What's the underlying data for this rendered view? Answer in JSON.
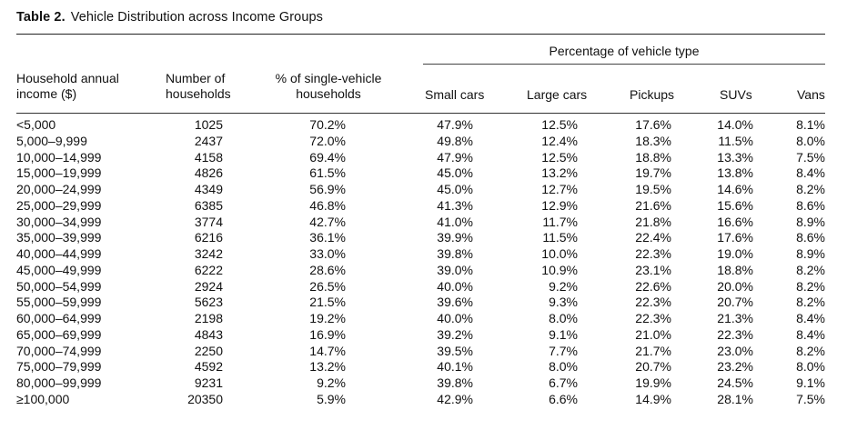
{
  "table": {
    "caption_label": "Table 2.",
    "caption_title": "Vehicle Distribution across Income Groups",
    "group_header": "Percentage of vehicle type",
    "headers": {
      "income": [
        "Household annual",
        "income ($)"
      ],
      "households": [
        "Number of",
        "households"
      ],
      "single": [
        "% of single-vehicle",
        "households"
      ],
      "small": "Small cars",
      "large": "Large cars",
      "pickups": "Pickups",
      "suvs": "SUVs",
      "vans": "Vans"
    },
    "rows": [
      [
        "<5,000",
        "1025",
        "70.2%",
        "47.9%",
        "12.5%",
        "17.6%",
        "14.0%",
        "8.1%"
      ],
      [
        "5,000–9,999",
        "2437",
        "72.0%",
        "49.8%",
        "12.4%",
        "18.3%",
        "11.5%",
        "8.0%"
      ],
      [
        "10,000–14,999",
        "4158",
        "69.4%",
        "47.9%",
        "12.5%",
        "18.8%",
        "13.3%",
        "7.5%"
      ],
      [
        "15,000–19,999",
        "4826",
        "61.5%",
        "45.0%",
        "13.2%",
        "19.7%",
        "13.8%",
        "8.4%"
      ],
      [
        "20,000–24,999",
        "4349",
        "56.9%",
        "45.0%",
        "12.7%",
        "19.5%",
        "14.6%",
        "8.2%"
      ],
      [
        "25,000–29,999",
        "6385",
        "46.8%",
        "41.3%",
        "12.9%",
        "21.6%",
        "15.6%",
        "8.6%"
      ],
      [
        "30,000–34,999",
        "3774",
        "42.7%",
        "41.0%",
        "11.7%",
        "21.8%",
        "16.6%",
        "8.9%"
      ],
      [
        "35,000–39,999",
        "6216",
        "36.1%",
        "39.9%",
        "11.5%",
        "22.4%",
        "17.6%",
        "8.6%"
      ],
      [
        "40,000–44,999",
        "3242",
        "33.0%",
        "39.8%",
        "10.0%",
        "22.3%",
        "19.0%",
        "8.9%"
      ],
      [
        "45,000–49,999",
        "6222",
        "28.6%",
        "39.0%",
        "10.9%",
        "23.1%",
        "18.8%",
        "8.2%"
      ],
      [
        "50,000–54,999",
        "2924",
        "26.5%",
        "40.0%",
        "9.2%",
        "22.6%",
        "20.0%",
        "8.2%"
      ],
      [
        "55,000–59,999",
        "5623",
        "21.5%",
        "39.6%",
        "9.3%",
        "22.3%",
        "20.7%",
        "8.2%"
      ],
      [
        "60,000–64,999",
        "2198",
        "19.2%",
        "40.0%",
        "8.0%",
        "22.3%",
        "21.3%",
        "8.4%"
      ],
      [
        "65,000–69,999",
        "4843",
        "16.9%",
        "39.2%",
        "9.1%",
        "21.0%",
        "22.3%",
        "8.4%"
      ],
      [
        "70,000–74,999",
        "2250",
        "14.7%",
        "39.5%",
        "7.7%",
        "21.7%",
        "23.0%",
        "8.2%"
      ],
      [
        "75,000–79,999",
        "4592",
        "13.2%",
        "40.1%",
        "8.0%",
        "20.7%",
        "23.2%",
        "8.0%"
      ],
      [
        "80,000–99,999",
        "9231",
        "9.2%",
        "39.8%",
        "6.7%",
        "19.9%",
        "24.5%",
        "9.1%"
      ],
      [
        "≥100,000",
        "20350",
        "5.9%",
        "42.9%",
        "6.6%",
        "14.9%",
        "28.1%",
        "7.5%"
      ]
    ]
  }
}
